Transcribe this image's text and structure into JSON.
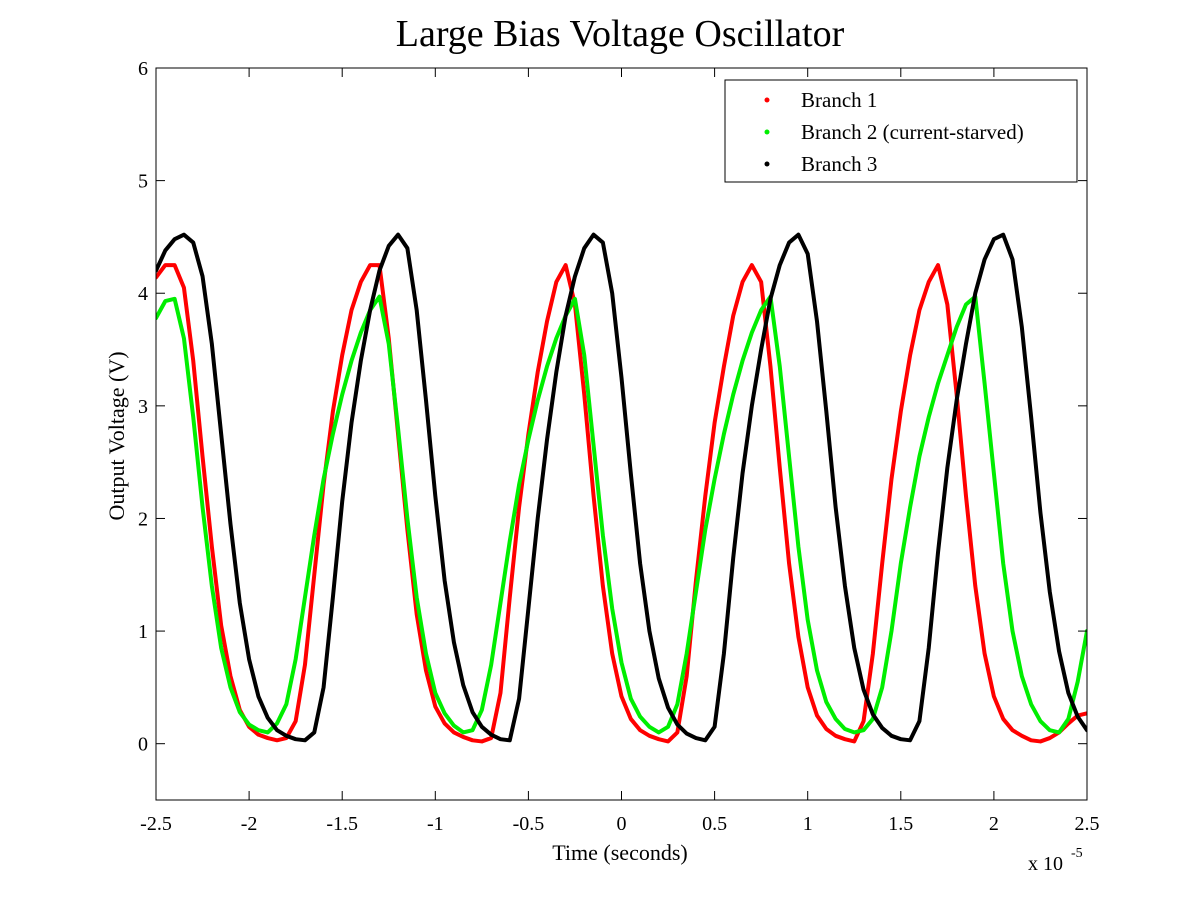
{
  "chart_data": {
    "type": "line",
    "title": "Large Bias Voltage Oscillator",
    "xlabel": "Time (seconds)",
    "ylabel": "Output Voltage (V)",
    "x_exponent_base": "x 10",
    "x_exponent_power": "-5",
    "xlim": [
      -2.5,
      2.5
    ],
    "ylim": [
      -0.5,
      6
    ],
    "xticks": [
      -2.5,
      -2,
      -1.5,
      -1,
      -0.5,
      0,
      0.5,
      1,
      1.5,
      2,
      2.5
    ],
    "xtick_labels": [
      "-2.5",
      "-2",
      "-1.5",
      "-1",
      "-0.5",
      "0",
      "0.5",
      "1",
      "1.5",
      "2",
      "2.5"
    ],
    "yticks": [
      0,
      1,
      2,
      3,
      4,
      5,
      6
    ],
    "ytick_labels": [
      "0",
      "1",
      "2",
      "3",
      "4",
      "5",
      "6"
    ],
    "grid": false,
    "legend_position": "top-right",
    "x_unit_scale": 1e-05,
    "period": 1.36,
    "series": [
      {
        "name": "Branch 1",
        "color": "#ff0000",
        "x": [
          -2.5,
          -2.45,
          -2.4,
          -2.35,
          -2.3,
          -2.25,
          -2.2,
          -2.15,
          -2.1,
          -2.05,
          -2.0,
          -1.95,
          -1.9,
          -1.85,
          -1.8,
          -1.75,
          -1.7,
          -1.65,
          -1.6,
          -1.55,
          -1.5,
          -1.45,
          -1.4,
          -1.35,
          -1.3,
          -1.25,
          -1.2,
          -1.15,
          -1.1,
          -1.05,
          -1.0,
          -0.95,
          -0.9,
          -0.85,
          -0.8,
          -0.75,
          -0.7,
          -0.65,
          -0.6,
          -0.55,
          -0.5,
          -0.45,
          -0.4,
          -0.35,
          -0.3,
          -0.25,
          -0.2,
          -0.15,
          -0.1,
          -0.05,
          0.0,
          0.05,
          0.1,
          0.15,
          0.2,
          0.25,
          0.3,
          0.35,
          0.4,
          0.45,
          0.5,
          0.55,
          0.6,
          0.65,
          0.7,
          0.75,
          0.8,
          0.85,
          0.9,
          0.95,
          1.0,
          1.05,
          1.1,
          1.15,
          1.2,
          1.25,
          1.3,
          1.35,
          1.4,
          1.45,
          1.5,
          1.55,
          1.6,
          1.65,
          1.7,
          1.75,
          1.8,
          1.85,
          1.9,
          1.95,
          2.0,
          2.05,
          2.1,
          2.15,
          2.2,
          2.25,
          2.3,
          2.35,
          2.4,
          2.45,
          2.5
        ],
        "values": [
          4.14,
          4.25,
          4.25,
          4.05,
          3.4,
          2.55,
          1.75,
          1.05,
          0.6,
          0.3,
          0.15,
          0.08,
          0.05,
          0.03,
          0.05,
          0.2,
          0.7,
          1.5,
          2.3,
          2.95,
          3.45,
          3.85,
          4.1,
          4.25,
          4.25,
          3.6,
          2.75,
          1.9,
          1.15,
          0.65,
          0.33,
          0.18,
          0.1,
          0.06,
          0.03,
          0.02,
          0.05,
          0.45,
          1.3,
          2.1,
          2.75,
          3.3,
          3.75,
          4.1,
          4.25,
          3.9,
          3.1,
          2.2,
          1.4,
          0.8,
          0.42,
          0.22,
          0.12,
          0.07,
          0.04,
          0.02,
          0.1,
          0.6,
          1.45,
          2.2,
          2.85,
          3.35,
          3.8,
          4.1,
          4.25,
          4.1,
          3.35,
          2.45,
          1.6,
          0.95,
          0.5,
          0.25,
          0.13,
          0.07,
          0.04,
          0.02,
          0.2,
          0.8,
          1.6,
          2.35,
          2.95,
          3.45,
          3.85,
          4.1,
          4.25,
          3.9,
          3.1,
          2.2,
          1.4,
          0.8,
          0.42,
          0.22,
          0.12,
          0.07,
          0.03,
          0.02,
          0.05,
          0.1,
          0.18,
          0.25,
          0.27
        ]
      },
      {
        "name": "Branch 2 (current-starved)",
        "color": "#00ee00",
        "x": [
          -2.5,
          -2.45,
          -2.4,
          -2.35,
          -2.3,
          -2.25,
          -2.2,
          -2.15,
          -2.1,
          -2.05,
          -2.0,
          -1.95,
          -1.9,
          -1.85,
          -1.8,
          -1.75,
          -1.7,
          -1.65,
          -1.6,
          -1.55,
          -1.5,
          -1.45,
          -1.4,
          -1.35,
          -1.3,
          -1.25,
          -1.2,
          -1.15,
          -1.1,
          -1.05,
          -1.0,
          -0.95,
          -0.9,
          -0.85,
          -0.8,
          -0.75,
          -0.7,
          -0.65,
          -0.6,
          -0.55,
          -0.5,
          -0.45,
          -0.4,
          -0.35,
          -0.3,
          -0.25,
          -0.2,
          -0.15,
          -0.1,
          -0.05,
          0.0,
          0.05,
          0.1,
          0.15,
          0.2,
          0.25,
          0.3,
          0.35,
          0.4,
          0.45,
          0.5,
          0.55,
          0.6,
          0.65,
          0.7,
          0.75,
          0.8,
          0.85,
          0.9,
          0.95,
          1.0,
          1.05,
          1.1,
          1.15,
          1.2,
          1.25,
          1.3,
          1.35,
          1.4,
          1.45,
          1.5,
          1.55,
          1.6,
          1.65,
          1.7,
          1.75,
          1.8,
          1.85,
          1.9,
          1.95,
          2.0,
          2.05,
          2.1,
          2.15,
          2.2,
          2.25,
          2.3,
          2.35,
          2.4,
          2.45,
          2.5
        ],
        "values": [
          3.78,
          3.93,
          3.95,
          3.6,
          2.9,
          2.1,
          1.4,
          0.85,
          0.5,
          0.28,
          0.17,
          0.12,
          0.1,
          0.18,
          0.35,
          0.75,
          1.3,
          1.85,
          2.35,
          2.75,
          3.1,
          3.4,
          3.65,
          3.85,
          3.97,
          3.55,
          2.8,
          2.0,
          1.3,
          0.8,
          0.45,
          0.27,
          0.16,
          0.1,
          0.12,
          0.3,
          0.7,
          1.25,
          1.8,
          2.3,
          2.7,
          3.05,
          3.35,
          3.6,
          3.8,
          3.95,
          3.45,
          2.65,
          1.85,
          1.2,
          0.72,
          0.4,
          0.24,
          0.15,
          0.1,
          0.15,
          0.35,
          0.8,
          1.35,
          1.9,
          2.35,
          2.75,
          3.1,
          3.4,
          3.65,
          3.85,
          3.97,
          3.35,
          2.55,
          1.75,
          1.1,
          0.65,
          0.37,
          0.22,
          0.13,
          0.1,
          0.12,
          0.22,
          0.5,
          1.0,
          1.6,
          2.1,
          2.55,
          2.9,
          3.2,
          3.45,
          3.7,
          3.9,
          3.97,
          3.2,
          2.4,
          1.6,
          1.0,
          0.6,
          0.35,
          0.2,
          0.12,
          0.1,
          0.22,
          0.55,
          1.0
        ]
      },
      {
        "name": "Branch 3",
        "color": "#000000",
        "x": [
          -2.5,
          -2.45,
          -2.4,
          -2.35,
          -2.3,
          -2.25,
          -2.2,
          -2.15,
          -2.1,
          -2.05,
          -2.0,
          -1.95,
          -1.9,
          -1.85,
          -1.8,
          -1.75,
          -1.7,
          -1.65,
          -1.6,
          -1.55,
          -1.5,
          -1.45,
          -1.4,
          -1.35,
          -1.3,
          -1.25,
          -1.2,
          -1.15,
          -1.1,
          -1.05,
          -1.0,
          -0.95,
          -0.9,
          -0.85,
          -0.8,
          -0.75,
          -0.7,
          -0.65,
          -0.6,
          -0.55,
          -0.5,
          -0.45,
          -0.4,
          -0.35,
          -0.3,
          -0.25,
          -0.2,
          -0.15,
          -0.1,
          -0.05,
          0.0,
          0.05,
          0.1,
          0.15,
          0.2,
          0.25,
          0.3,
          0.35,
          0.4,
          0.45,
          0.5,
          0.55,
          0.6,
          0.65,
          0.7,
          0.75,
          0.8,
          0.85,
          0.9,
          0.95,
          1.0,
          1.05,
          1.1,
          1.15,
          1.2,
          1.25,
          1.3,
          1.35,
          1.4,
          1.45,
          1.5,
          1.55,
          1.6,
          1.65,
          1.7,
          1.75,
          1.8,
          1.85,
          1.9,
          1.95,
          2.0,
          2.05,
          2.1,
          2.15,
          2.2,
          2.25,
          2.3,
          2.35,
          2.4,
          2.45,
          2.5
        ],
        "values": [
          4.2,
          4.38,
          4.48,
          4.52,
          4.45,
          4.15,
          3.55,
          2.75,
          1.95,
          1.25,
          0.75,
          0.42,
          0.23,
          0.12,
          0.07,
          0.04,
          0.03,
          0.1,
          0.5,
          1.3,
          2.15,
          2.85,
          3.4,
          3.85,
          4.2,
          4.42,
          4.52,
          4.4,
          3.85,
          3.05,
          2.2,
          1.45,
          0.9,
          0.52,
          0.28,
          0.15,
          0.08,
          0.04,
          0.03,
          0.4,
          1.2,
          2.0,
          2.7,
          3.3,
          3.8,
          4.15,
          4.4,
          4.52,
          4.45,
          4.0,
          3.25,
          2.4,
          1.6,
          1.0,
          0.58,
          0.32,
          0.17,
          0.09,
          0.05,
          0.03,
          0.15,
          0.8,
          1.65,
          2.4,
          3.0,
          3.5,
          3.95,
          4.25,
          4.45,
          4.52,
          4.35,
          3.75,
          2.95,
          2.1,
          1.4,
          0.85,
          0.48,
          0.26,
          0.14,
          0.07,
          0.04,
          0.03,
          0.2,
          0.85,
          1.7,
          2.45,
          3.05,
          3.55,
          4.0,
          4.3,
          4.48,
          4.52,
          4.3,
          3.7,
          2.9,
          2.05,
          1.35,
          0.82,
          0.45,
          0.24,
          0.12
        ]
      }
    ]
  }
}
